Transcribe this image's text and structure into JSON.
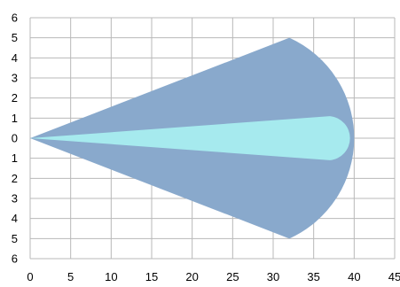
{
  "chart_data": {
    "type": "area",
    "title": "",
    "xlabel": "",
    "ylabel": "",
    "xlim": [
      0,
      45
    ],
    "ylim": [
      -6,
      6
    ],
    "x_ticks": [
      0,
      5,
      10,
      15,
      20,
      25,
      30,
      35,
      40,
      45
    ],
    "x_tick_labels": [
      "0",
      "5",
      "10",
      "15",
      "20",
      "25",
      "30",
      "35",
      "40",
      "45"
    ],
    "y_ticks": [
      6,
      5,
      4,
      3,
      2,
      1,
      0,
      -1,
      -2,
      -3,
      -4,
      -5,
      -6
    ],
    "y_tick_labels": [
      "6",
      "5",
      "4",
      "3",
      "2",
      "1",
      "0",
      "1",
      "2",
      "3",
      "4",
      "5",
      "6"
    ],
    "grid": true,
    "legend": "none",
    "series": [
      {
        "color": "#89a9cc",
        "apex": [
          0,
          0
        ],
        "upper_tangent": [
          32,
          5
        ],
        "lower_tangent": [
          32,
          -5
        ],
        "tip": [
          40,
          0
        ]
      },
      {
        "color": "#a6eaee",
        "apex": [
          0,
          0
        ],
        "upper_tangent": [
          37,
          1.1
        ],
        "lower_tangent": [
          37,
          -1.1
        ],
        "tip": [
          40,
          0
        ]
      }
    ]
  }
}
